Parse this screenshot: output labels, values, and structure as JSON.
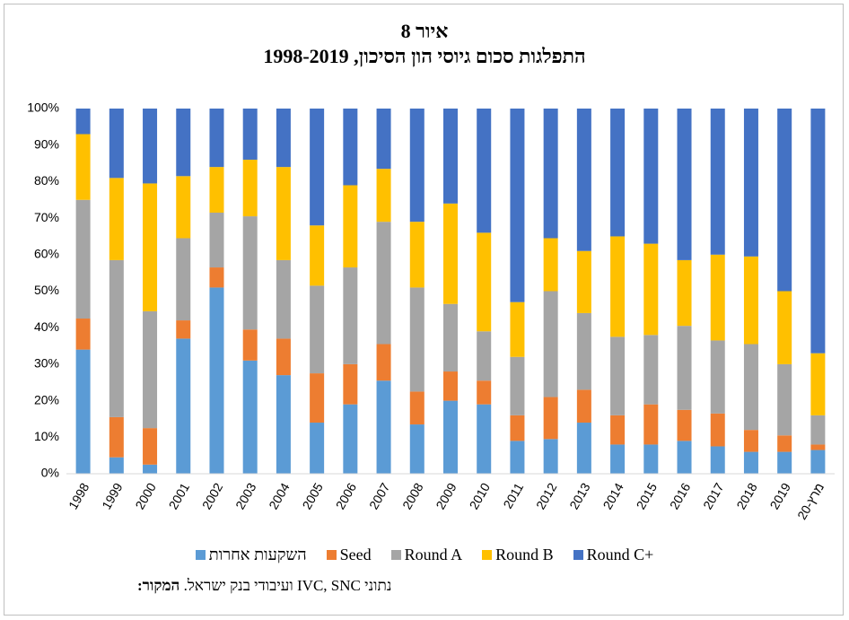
{
  "chart_data": {
    "type": "stacked_bar",
    "title": "איור 8",
    "subtitle": "התפלגות סכום גיוסי הון הסיכון, 1998-2019",
    "categories": [
      "1998",
      "1999",
      "2000",
      "2001",
      "2002",
      "2003",
      "2004",
      "2005",
      "2006",
      "2007",
      "2008",
      "2009",
      "2010",
      "2011",
      "2012",
      "2013",
      "2014",
      "2015",
      "2016",
      "2017",
      "2018",
      "2019",
      "מרץ-20"
    ],
    "series": [
      {
        "name": "השקעות אחרות",
        "color": "#5b9bd5",
        "values": [
          34,
          4.5,
          2.5,
          37,
          51,
          31,
          27,
          14,
          19,
          25.5,
          13.5,
          20,
          19,
          9,
          9.5,
          14,
          8,
          8,
          9,
          7.5,
          6,
          6,
          6.5
        ]
      },
      {
        "name": "Seed",
        "color": "#ed7d31",
        "values": [
          8.5,
          11,
          10,
          5,
          5.5,
          8.5,
          10,
          13.5,
          11,
          10,
          9,
          8,
          6.5,
          7,
          11.5,
          9,
          8,
          11,
          8.5,
          9,
          6,
          4.5,
          1.5
        ]
      },
      {
        "name": "Round A",
        "color": "#a5a5a5",
        "values": [
          32.5,
          43,
          32,
          22.5,
          15,
          31,
          21.5,
          24,
          26.5,
          33.5,
          28.5,
          18.5,
          13.5,
          16,
          29,
          21,
          21.5,
          19,
          23,
          20,
          23.5,
          19.5,
          8
        ]
      },
      {
        "name": "Round B",
        "color": "#ffc000",
        "values": [
          18,
          22.5,
          35,
          17,
          12.5,
          15.5,
          25.5,
          16.5,
          22.5,
          14.5,
          18,
          27.5,
          27,
          15,
          14.5,
          17,
          27.5,
          25,
          18,
          23.5,
          24,
          20,
          17
        ]
      },
      {
        "name": "Round C+",
        "color": "#4472c4",
        "values": [
          7,
          19,
          20.5,
          18.5,
          16,
          14,
          16,
          32,
          21,
          16.5,
          31,
          26,
          34,
          53,
          35.5,
          39,
          35,
          37,
          41.5,
          40,
          40.5,
          50,
          67
        ]
      }
    ],
    "ylim": [
      0,
      100
    ],
    "yticks": [
      {
        "value": 0,
        "label": "0%"
      },
      {
        "value": 10,
        "label": "10%"
      },
      {
        "value": 20,
        "label": "20%"
      },
      {
        "value": 30,
        "label": "30%"
      },
      {
        "value": 40,
        "label": "40%"
      },
      {
        "value": 50,
        "label": "50%"
      },
      {
        "value": 60,
        "label": "60%"
      },
      {
        "value": 70,
        "label": "70%"
      },
      {
        "value": 80,
        "label": "80%"
      },
      {
        "value": 90,
        "label": "90%"
      },
      {
        "value": 100,
        "label": "100%"
      }
    ],
    "grid": false,
    "source": {
      "label": "המקור:",
      "text": "נתוני IVC, SNC ועיבודי בנק ישראל."
    }
  }
}
